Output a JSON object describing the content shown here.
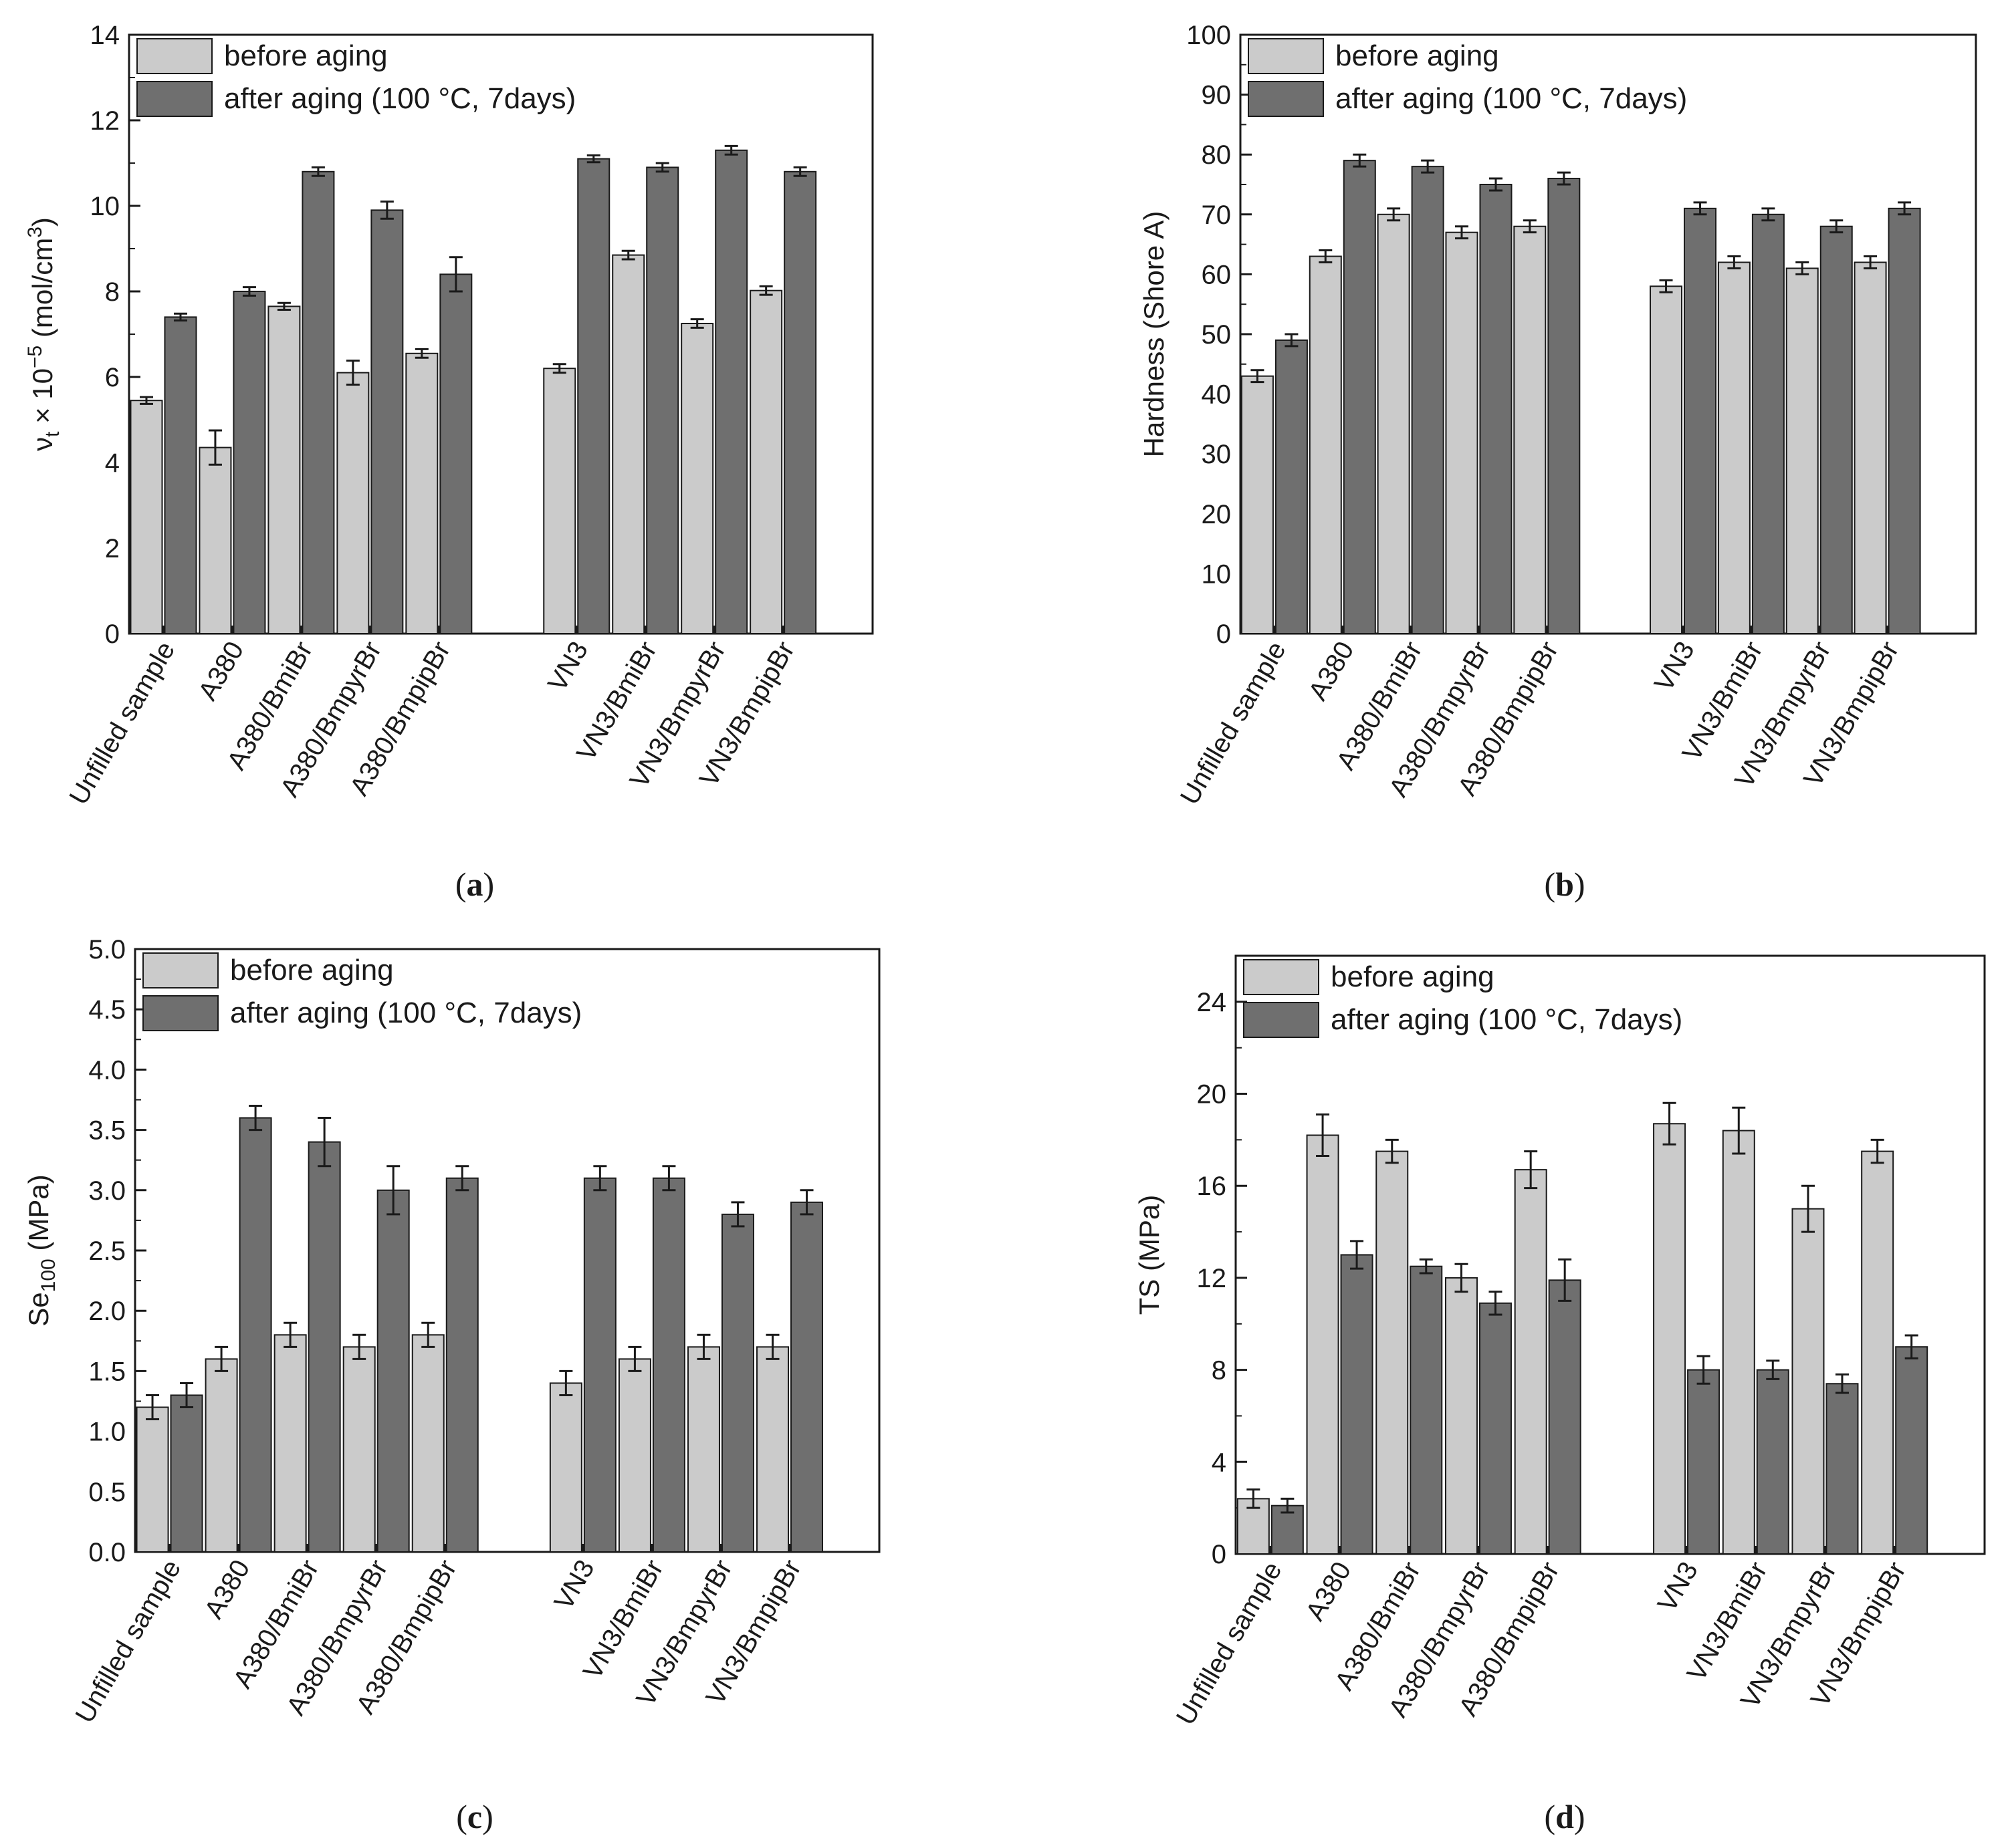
{
  "colors": {
    "before": "#cbcbcb",
    "after": "#6f6f6f",
    "axis": "#1a1a1a",
    "bar_stroke": "#1a1a1a"
  },
  "chart_data": [
    {
      "id": "a",
      "type": "bar",
      "panel_label": "a",
      "ylabel_parts": {
        "nu": "ν",
        "sub": "t",
        "times": " × 10",
        "sup": "−5",
        "unit_open": " (mol/cm",
        "unit_sup": "3",
        "unit_close": ")"
      },
      "ylim": [
        0,
        14
      ],
      "yticks": [
        0,
        2,
        4,
        6,
        8,
        10,
        12,
        14
      ],
      "ytick_labels": [
        "0",
        "2",
        "4",
        "6",
        "8",
        "10",
        "12",
        "14"
      ],
      "legend": [
        "before aging",
        "after aging (100 °C, 7days)"
      ],
      "categories": [
        "Unfilled sample",
        "A380",
        "A380/BmiBr",
        "A380/BmpyrBr",
        "A380/BmpipBr",
        "VN3",
        "VN3/BmiBr",
        "VN3/BmpyrBr",
        "VN3/BmpipBr"
      ],
      "series": [
        {
          "name": "before aging",
          "values": [
            5.45,
            4.35,
            7.65,
            6.1,
            6.55,
            6.2,
            8.85,
            7.25,
            8.02
          ],
          "errors": [
            0.08,
            0.4,
            0.08,
            0.28,
            0.1,
            0.1,
            0.1,
            0.1,
            0.1
          ]
        },
        {
          "name": "after aging (100 °C, 7days)",
          "values": [
            7.4,
            8.0,
            10.8,
            9.9,
            8.4,
            11.1,
            10.9,
            11.3,
            10.8
          ],
          "errors": [
            0.08,
            0.1,
            0.1,
            0.2,
            0.4,
            0.08,
            0.1,
            0.1,
            0.1
          ]
        }
      ]
    },
    {
      "id": "b",
      "type": "bar",
      "panel_label": "b",
      "ylabel": "Hardness (Shore A)",
      "ylim": [
        0,
        100
      ],
      "yticks": [
        0,
        10,
        20,
        30,
        40,
        50,
        60,
        70,
        80,
        90,
        100
      ],
      "ytick_labels": [
        "0",
        "10",
        "20",
        "30",
        "40",
        "50",
        "60",
        "70",
        "80",
        "90",
        "100"
      ],
      "legend": [
        "before aging",
        "after aging (100 °C, 7days)"
      ],
      "categories": [
        "Unfilled sample",
        "A380",
        "A380/BmiBr",
        "A380/BmpyrBr",
        "A380/BmpipBr",
        "VN3",
        "VN3/BmiBr",
        "VN3/BmpyrBr",
        "VN3/BmpipBr"
      ],
      "series": [
        {
          "name": "before aging",
          "values": [
            43,
            63,
            70,
            67,
            68,
            58,
            62,
            61,
            62
          ],
          "errors": [
            1,
            1,
            1,
            1,
            1,
            1,
            1,
            1,
            1
          ]
        },
        {
          "name": "after aging (100 °C, 7days)",
          "values": [
            49,
            79,
            78,
            75,
            76,
            71,
            70,
            68,
            71
          ],
          "errors": [
            1,
            1,
            1,
            1,
            1,
            1,
            1,
            1,
            1
          ]
        }
      ]
    },
    {
      "id": "c",
      "type": "bar",
      "panel_label": "c",
      "ylabel_parts": {
        "main": "Se",
        "sub": "100",
        "unit": " (MPa)"
      },
      "ylim": [
        0,
        5
      ],
      "yticks": [
        0,
        0.5,
        1,
        1.5,
        2,
        2.5,
        3,
        3.5,
        4,
        4.5,
        5
      ],
      "ytick_labels": [
        "0.0",
        "0.5",
        "1.0",
        "1.5",
        "2.0",
        "2.5",
        "3.0",
        "3.5",
        "4.0",
        "4.5",
        "5.0"
      ],
      "legend": [
        "before aging",
        "after aging (100 °C, 7days)"
      ],
      "categories": [
        "Unfilled sample",
        "A380",
        "A380/BmiBr",
        "A380/BmpyrBr",
        "A380/BmpipBr",
        "VN3",
        "VN3/BmiBr",
        "VN3/BmpyrBr",
        "VN3/BmpipBr"
      ],
      "series": [
        {
          "name": "before aging",
          "values": [
            1.2,
            1.6,
            1.8,
            1.7,
            1.8,
            1.4,
            1.6,
            1.7,
            1.7
          ],
          "errors": [
            0.1,
            0.1,
            0.1,
            0.1,
            0.1,
            0.1,
            0.1,
            0.1,
            0.1
          ]
        },
        {
          "name": "after aging (100 °C, 7days)",
          "values": [
            1.3,
            3.6,
            3.4,
            3.0,
            3.1,
            3.1,
            3.1,
            2.8,
            2.9
          ],
          "errors": [
            0.1,
            0.1,
            0.2,
            0.2,
            0.1,
            0.1,
            0.1,
            0.1,
            0.1
          ]
        }
      ]
    },
    {
      "id": "d",
      "type": "bar",
      "panel_label": "d",
      "ylabel": "TS (MPa)",
      "ylim": [
        0,
        26
      ],
      "yticks": [
        0,
        4,
        8,
        12,
        16,
        20,
        24
      ],
      "ytick_labels": [
        "0",
        "4",
        "8",
        "12",
        "16",
        "20",
        "24"
      ],
      "legend": [
        "before aging",
        "after aging (100 °C, 7days)"
      ],
      "categories": [
        "Unfilled sample",
        "A380",
        "A380/BmiBr",
        "A380/BmpyrBr",
        "A380/BmpipBr",
        "VN3",
        "VN3/BmiBr",
        "VN3/BmpyrBr",
        "VN3/BmpipBr"
      ],
      "series": [
        {
          "name": "before aging",
          "values": [
            2.4,
            18.2,
            17.5,
            12.0,
            16.7,
            18.7,
            18.4,
            15.0,
            17.5
          ],
          "errors": [
            0.4,
            0.9,
            0.5,
            0.6,
            0.8,
            0.9,
            1.0,
            1.0,
            0.5
          ]
        },
        {
          "name": "after aging (100 °C, 7days)",
          "values": [
            2.1,
            13.0,
            12.5,
            10.9,
            11.9,
            8.0,
            8.0,
            7.4,
            9.0
          ],
          "errors": [
            0.3,
            0.6,
            0.3,
            0.5,
            0.9,
            0.6,
            0.4,
            0.4,
            0.5
          ]
        }
      ]
    }
  ]
}
